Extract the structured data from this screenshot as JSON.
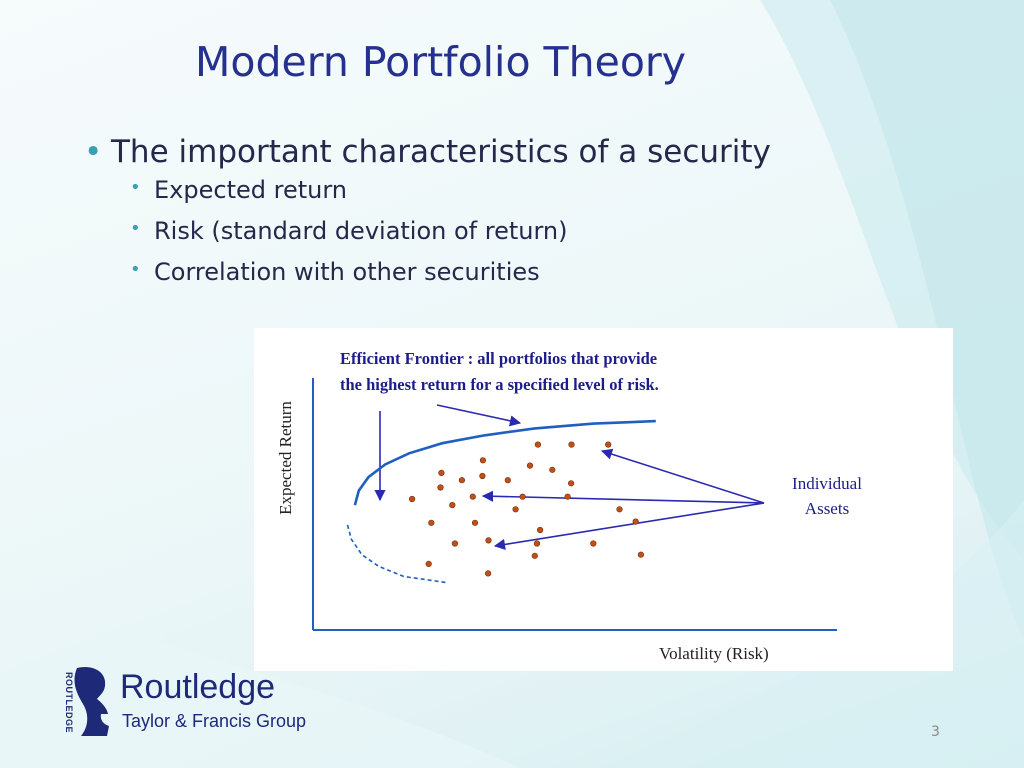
{
  "slide": {
    "title": "Modern Portfolio Theory",
    "page_number": "3"
  },
  "bullets": {
    "main": "The important characteristics of a security",
    "sub": [
      "Expected return",
      "Risk (standard deviation of return)",
      "Correlation with other securities"
    ]
  },
  "chart_data": {
    "type": "scatter",
    "title": "",
    "xlabel": "Volatility (Risk)",
    "ylabel": "Expected Return",
    "grid": false,
    "annotations": [
      {
        "text": "Efficient Frontier : all portfolios that provide",
        "role": "frontier-label-line1"
      },
      {
        "text": "the highest return for a specified level of risk.",
        "role": "frontier-label-line2"
      },
      {
        "text": "Individual",
        "role": "assets-label-line1"
      },
      {
        "text": "Assets",
        "role": "assets-label-line2"
      }
    ],
    "series": [
      {
        "name": "Individual Assets",
        "color": "#c0501a",
        "points": [
          [
            5.15,
            6.62
          ],
          [
            5.92,
            6.62
          ],
          [
            6.76,
            6.62
          ],
          [
            3.89,
            6.06
          ],
          [
            4.97,
            5.87
          ],
          [
            5.48,
            5.72
          ],
          [
            2.94,
            5.61
          ],
          [
            3.41,
            5.35
          ],
          [
            3.88,
            5.5
          ],
          [
            4.46,
            5.35
          ],
          [
            5.91,
            5.24
          ],
          [
            2.92,
            5.09
          ],
          [
            3.66,
            4.76
          ],
          [
            4.8,
            4.76
          ],
          [
            5.83,
            4.76
          ],
          [
            2.27,
            4.68
          ],
          [
            3.19,
            4.46
          ],
          [
            4.64,
            4.31
          ],
          [
            7.39,
            3.87
          ],
          [
            7.02,
            4.31
          ],
          [
            2.71,
            3.83
          ],
          [
            3.71,
            3.83
          ],
          [
            5.2,
            3.57
          ],
          [
            4.02,
            3.2
          ],
          [
            5.13,
            3.09
          ],
          [
            3.25,
            3.09
          ],
          [
            6.42,
            3.09
          ],
          [
            5.08,
            2.65
          ],
          [
            7.51,
            2.69
          ],
          [
            2.65,
            2.36
          ],
          [
            4.01,
            2.02
          ]
        ]
      }
    ],
    "frontier_efficient": [
      [
        0.96,
        4.46
      ],
      [
        1.05,
        4.98
      ],
      [
        1.27,
        5.46
      ],
      [
        1.65,
        5.91
      ],
      [
        2.2,
        6.31
      ],
      [
        2.96,
        6.67
      ],
      [
        3.92,
        6.95
      ],
      [
        5.08,
        7.2
      ],
      [
        6.43,
        7.37
      ],
      [
        7.85,
        7.46
      ]
    ],
    "frontier_inefficient": [
      [
        0.79,
        3.75
      ],
      [
        0.88,
        3.24
      ],
      [
        1.12,
        2.69
      ],
      [
        1.5,
        2.28
      ],
      [
        2.08,
        1.91
      ],
      [
        3.08,
        1.69
      ]
    ],
    "axes": {
      "x_range": [
        0,
        12
      ],
      "y_range": [
        0,
        9
      ]
    },
    "colors": {
      "frontier": "#1f5fbf",
      "arrows": "#2a2ab0",
      "points": "#c0501a"
    }
  },
  "logo": {
    "vertical_text": "ROUTLEDGE",
    "name": "Routledge",
    "subtitle": "Taylor & Francis Group",
    "icon": "routledge-head-icon"
  }
}
